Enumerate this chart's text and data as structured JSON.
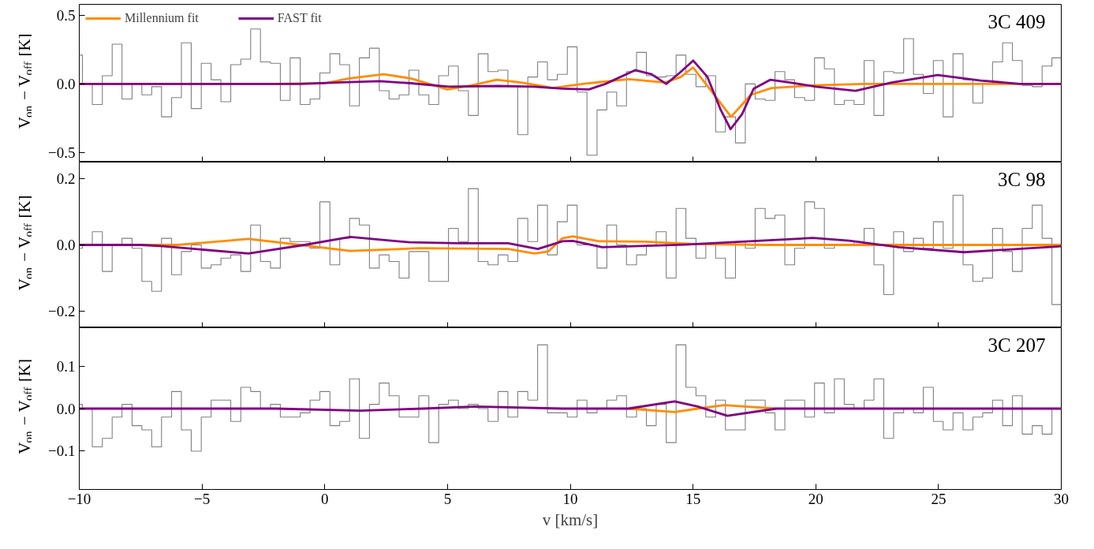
{
  "chart_data": [
    {
      "type": "line",
      "ylabel": "V$_{on}$ − V$_{off}$ [K]",
      "annotations": [
        "3C 409"
      ],
      "legend": "top left",
      "grid": false,
      "tick_labels": "y",
      "xlim": [
        -10,
        30
      ],
      "xticks": [
        -10,
        -5,
        0,
        5,
        10,
        15,
        20,
        25,
        30
      ],
      "ylim": [
        -0.57,
        0.58
      ],
      "yticks": [
        {
          "value": -0.5,
          "label": "−0.5"
        },
        {
          "value": 0,
          "label": "0.0"
        },
        0.5
      ],
      "bins": [
        -10,
        -9.87,
        -9.47,
        -9.06,
        -8.66,
        -8.26,
        -7.85,
        -7.45,
        -7.05,
        -6.65,
        -6.24,
        -5.84,
        -5.44,
        -5.03,
        -4.63,
        -4.23,
        -3.83,
        -3.42,
        -3.02,
        -2.62,
        -2.21,
        -1.81,
        -1.41,
        -1.0,
        -0.6,
        -0.2,
        0.21,
        0.61,
        1.01,
        1.41,
        1.82,
        2.22,
        2.62,
        3.03,
        3.43,
        3.83,
        4.24,
        4.64,
        5.04,
        5.44,
        5.85,
        6.25,
        6.65,
        7.06,
        7.46,
        7.86,
        8.27,
        8.67,
        9.07,
        9.47,
        9.88,
        10.28,
        10.68,
        11.09,
        11.49,
        11.89,
        12.29,
        12.7,
        13.1,
        13.5,
        13.91,
        14.31,
        14.71,
        15.12,
        15.52,
        15.92,
        16.32,
        16.73,
        17.13,
        17.53,
        17.94,
        18.34,
        18.74,
        19.14,
        19.55,
        19.95,
        20.35,
        20.76,
        21.16,
        21.56,
        21.97,
        22.37,
        22.77,
        23.17,
        23.58,
        23.98,
        24.38,
        24.79,
        25.19,
        25.59,
        26.0,
        26.4,
        26.8,
        27.2,
        27.61,
        28.01,
        28.41,
        28.82,
        29.22,
        29.62,
        30
      ],
      "series": [
        {
          "type": "histogram",
          "color": "#808080",
          "values": [
            0.21,
            0.0,
            -0.15,
            0.06,
            0.29,
            -0.11,
            0.0,
            -0.08,
            -0.02,
            -0.24,
            -0.1,
            0.3,
            -0.18,
            0.15,
            0.03,
            -0.13,
            0.14,
            0.18,
            0.4,
            0.16,
            0.15,
            -0.12,
            0.19,
            -0.15,
            -0.11,
            0.08,
            0.22,
            0.14,
            -0.16,
            0.19,
            0.26,
            -0.05,
            -0.11,
            -0.08,
            0.1,
            -0.08,
            -0.15,
            0.06,
            0.13,
            -0.05,
            -0.23,
            0.22,
            0.09,
            0.1,
            -0.02,
            -0.37,
            0.05,
            0.16,
            0.03,
            0.07,
            0.27,
            -0.06,
            -0.52,
            -0.19,
            -0.06,
            -0.16,
            0.09,
            0.23,
            0.06,
            0.05,
            0.06,
            0.21,
            0.07,
            -0.02,
            0.06,
            -0.35,
            -0.24,
            -0.43,
            0.0,
            -0.11,
            -0.12,
            0.09,
            0.03,
            -0.1,
            -0.12,
            0.19,
            0.11,
            -0.15,
            -0.12,
            -0.15,
            0.17,
            -0.23,
            0.09,
            0.08,
            0.33,
            0.07,
            -0.07,
            0.17,
            -0.24,
            0.22,
            0.03,
            -0.14,
            0.0,
            0.16,
            0.3,
            0.17,
            -0.01,
            -0.02,
            0.13,
            0.19
          ]
        },
        {
          "name": "Millennium fit",
          "color": "#ff8c00",
          "x": [
            -10,
            -2,
            0,
            1,
            2.4,
            3.5,
            5,
            6,
            7,
            8,
            9,
            9.29,
            10.5,
            12.4,
            13.86,
            14.5,
            15.0,
            15.74,
            16.55,
            17.35,
            18.2,
            20,
            22,
            25,
            30
          ],
          "values": [
            0,
            0,
            0.005,
            0.04,
            0.07,
            0.04,
            -0.04,
            -0.01,
            0.03,
            0.01,
            -0.02,
            -0.03,
            0.0,
            0.035,
            0.01,
            0.05,
            0.12,
            -0.05,
            -0.24,
            -0.08,
            -0.03,
            -0.01,
            0,
            0,
            0
          ]
        },
        {
          "name": "FAST fit",
          "color": "#800080",
          "x": [
            -10,
            -1,
            0.5,
            2.24,
            3.5,
            5.05,
            7.06,
            8.5,
            9.68,
            10.76,
            11.43,
            12.64,
            13.31,
            13.91,
            14.45,
            15.01,
            15.59,
            16.13,
            16.53,
            17.0,
            17.47,
            18.14,
            18.95,
            20.0,
            21.62,
            23.09,
            24.97,
            26.71,
            28.32,
            30
          ],
          "values": [
            0,
            0,
            0.01,
            0.02,
            0.005,
            -0.02,
            -0.015,
            -0.02,
            -0.035,
            -0.04,
            0.0,
            0.1,
            0.07,
            0.0,
            0.08,
            0.17,
            0.05,
            -0.19,
            -0.33,
            -0.22,
            -0.035,
            0.03,
            0.01,
            -0.02,
            -0.05,
            0.01,
            0.065,
            0.025,
            0.0,
            0.0
          ]
        }
      ]
    },
    {
      "type": "line",
      "ylabel": "V$_{on}$ − V$_{off}$ [K]",
      "annotations": [
        "3C 98"
      ],
      "grid": false,
      "tick_labels": "y",
      "xlim": [
        -10,
        30
      ],
      "xticks": [
        -10,
        -5,
        0,
        5,
        10,
        15,
        20,
        25,
        30
      ],
      "ylim": [
        -0.25,
        0.25
      ],
      "yticks": [
        {
          "value": -0.2,
          "label": "−0.2"
        },
        {
          "value": 0,
          "label": "0.0"
        },
        0.2
      ],
      "bins": [
        -10,
        -9.87,
        -9.47,
        -9.06,
        -8.66,
        -8.26,
        -7.85,
        -7.45,
        -7.05,
        -6.65,
        -6.24,
        -5.84,
        -5.44,
        -5.03,
        -4.63,
        -4.23,
        -3.83,
        -3.42,
        -3.02,
        -2.62,
        -2.21,
        -1.81,
        -1.41,
        -1.0,
        -0.6,
        -0.2,
        0.21,
        0.61,
        1.01,
        1.41,
        1.82,
        2.22,
        2.62,
        3.03,
        3.43,
        3.83,
        4.24,
        4.64,
        5.04,
        5.44,
        5.85,
        6.25,
        6.65,
        7.06,
        7.46,
        7.86,
        8.27,
        8.67,
        9.07,
        9.47,
        9.88,
        10.28,
        10.68,
        11.09,
        11.49,
        11.89,
        12.29,
        12.7,
        13.1,
        13.5,
        13.91,
        14.31,
        14.71,
        15.12,
        15.52,
        15.92,
        16.32,
        16.73,
        17.13,
        17.53,
        17.94,
        18.34,
        18.74,
        19.14,
        19.55,
        19.95,
        20.35,
        20.76,
        21.16,
        21.56,
        21.97,
        22.37,
        22.77,
        23.17,
        23.58,
        23.98,
        24.38,
        24.79,
        25.19,
        25.59,
        26.0,
        26.4,
        26.8,
        27.2,
        27.61,
        28.01,
        28.41,
        28.82,
        29.22,
        29.62,
        30
      ],
      "series": [
        {
          "type": "histogram",
          "color": "#808080",
          "values": [
            -0.01,
            0.0,
            0.04,
            -0.08,
            0.0,
            0.02,
            -0.01,
            -0.11,
            -0.14,
            0.02,
            -0.09,
            -0.02,
            0.0,
            -0.07,
            -0.06,
            -0.04,
            -0.03,
            -0.08,
            0.06,
            -0.05,
            -0.07,
            0.02,
            0.01,
            0.01,
            -0.01,
            0.13,
            -0.06,
            0.02,
            0.08,
            0.06,
            -0.07,
            -0.03,
            -0.05,
            -0.1,
            -0.02,
            -0.02,
            -0.11,
            -0.11,
            0.05,
            0.01,
            0.17,
            -0.05,
            -0.06,
            -0.03,
            -0.05,
            0.08,
            0.01,
            0.12,
            -0.03,
            0.07,
            0.12,
            0.0,
            0.0,
            -0.07,
            0.06,
            0.0,
            -0.06,
            -0.03,
            0.0,
            0.04,
            -0.1,
            0.11,
            0.02,
            -0.04,
            0.0,
            -0.04,
            -0.1,
            0.01,
            -0.01,
            0.11,
            0.08,
            0.09,
            -0.06,
            -0.01,
            0.13,
            0.11,
            -0.01,
            0.0,
            0.0,
            0.01,
            0.05,
            -0.06,
            -0.15,
            0.04,
            -0.02,
            0.02,
            -0.01,
            0.07,
            -0.01,
            0.15,
            -0.06,
            -0.11,
            -0.1,
            0.05,
            -0.02,
            -0.08,
            0.05,
            0.12,
            0.02,
            -0.18
          ]
        },
        {
          "color": "#ff8c00",
          "x": [
            -10,
            -6,
            -3.11,
            -1,
            1.04,
            3.85,
            7.47,
            8.54,
            9.1,
            9.68,
            10.1,
            11.17,
            13.05,
            14.92,
            18,
            30
          ],
          "values": [
            0,
            0,
            0.018,
            0.0,
            -0.018,
            -0.01,
            -0.012,
            -0.026,
            -0.02,
            0.02,
            0.026,
            0.011,
            0.01,
            0.003,
            0.0,
            0.0
          ]
        },
        {
          "color": "#800080",
          "x": [
            -10,
            -7.5,
            -6.6,
            -3.11,
            -0.83,
            1.04,
            3.45,
            5.46,
            7.47,
            8.68,
            9.68,
            10.1,
            11.3,
            14.66,
            19.88,
            21.36,
            23.37,
            26.05,
            29.8,
            30
          ],
          "values": [
            0,
            0,
            -0.004,
            -0.026,
            0.0,
            0.024,
            0.008,
            0.005,
            0.005,
            -0.012,
            0.011,
            0.012,
            -0.007,
            0.001,
            0.021,
            0.013,
            -0.007,
            -0.022,
            -0.005,
            -0.004
          ]
        }
      ]
    },
    {
      "type": "line",
      "xlabel": "v [km/s]",
      "ylabel": "V$_{on}$ − V$_{off}$ [K]",
      "annotations": [
        "3C 207"
      ],
      "grid": false,
      "xlim": [
        -10,
        30
      ],
      "xticks": [
        {
          "value": -10,
          "label": "−10"
        },
        {
          "value": -5,
          "label": "−5"
        },
        0,
        5,
        10,
        15,
        20,
        25,
        30
      ],
      "ylim": [
        -0.19,
        0.19
      ],
      "yticks": [
        {
          "value": -0.1,
          "label": "−0.1"
        },
        {
          "value": 0,
          "label": "0.0"
        },
        0.1
      ],
      "bins": [
        -10,
        -9.87,
        -9.47,
        -9.06,
        -8.66,
        -8.26,
        -7.85,
        -7.45,
        -7.05,
        -6.65,
        -6.24,
        -5.84,
        -5.44,
        -5.03,
        -4.63,
        -4.23,
        -3.83,
        -3.42,
        -3.02,
        -2.62,
        -2.21,
        -1.81,
        -1.41,
        -1.0,
        -0.6,
        -0.2,
        0.21,
        0.61,
        1.01,
        1.41,
        1.82,
        2.22,
        2.62,
        3.03,
        3.43,
        3.83,
        4.24,
        4.64,
        5.04,
        5.44,
        5.85,
        6.25,
        6.65,
        7.06,
        7.46,
        7.86,
        8.27,
        8.67,
        9.07,
        9.47,
        9.88,
        10.28,
        10.68,
        11.09,
        11.49,
        11.89,
        12.29,
        12.7,
        13.1,
        13.5,
        13.91,
        14.31,
        14.71,
        15.12,
        15.52,
        15.92,
        16.32,
        16.73,
        17.13,
        17.53,
        17.94,
        18.34,
        18.74,
        19.14,
        19.55,
        19.95,
        20.35,
        20.76,
        21.16,
        21.56,
        21.97,
        22.37,
        22.77,
        23.17,
        23.58,
        23.98,
        24.38,
        24.79,
        25.19,
        25.59,
        26.0,
        26.4,
        26.8,
        27.2,
        27.61,
        28.01,
        28.41,
        28.82,
        29.22,
        29.62,
        30
      ],
      "series": [
        {
          "type": "histogram",
          "color": "#808080",
          "values": [
            0.01,
            0.0,
            -0.09,
            -0.07,
            -0.02,
            0.01,
            -0.04,
            -0.05,
            -0.09,
            -0.02,
            0.04,
            -0.05,
            -0.1,
            -0.02,
            0.02,
            0.02,
            -0.03,
            0.05,
            0.04,
            0.0,
            0.01,
            -0.02,
            -0.02,
            -0.01,
            0.02,
            0.04,
            -0.04,
            -0.03,
            0.07,
            -0.07,
            0.01,
            0.06,
            0.03,
            -0.02,
            -0.02,
            0.03,
            -0.08,
            0.01,
            0.02,
            0.0,
            0.01,
            0.0,
            -0.03,
            0.04,
            -0.02,
            0.04,
            0.02,
            0.15,
            -0.01,
            -0.01,
            -0.02,
            0.02,
            -0.01,
            0.0,
            0.02,
            0.03,
            -0.02,
            0.0,
            -0.04,
            0.01,
            -0.08,
            0.15,
            0.05,
            0.03,
            -0.02,
            0.02,
            -0.05,
            -0.05,
            0.02,
            0.02,
            -0.01,
            -0.05,
            0.02,
            0.02,
            -0.02,
            0.06,
            -0.01,
            0.07,
            0.01,
            0.0,
            0.02,
            0.07,
            -0.07,
            -0.01,
            0.0,
            -0.01,
            0.05,
            -0.03,
            -0.05,
            -0.01,
            -0.05,
            -0.02,
            -0.01,
            0.02,
            -0.04,
            0.03,
            -0.06,
            -0.04,
            -0.06,
            0.0
          ]
        },
        {
          "color": "#ff8c00",
          "x": [
            12.37,
            14.25,
            15.2,
            16.26,
            18.4
          ],
          "values": [
            0.0,
            -0.008,
            0.0,
            0.008,
            0.0
          ]
        },
        {
          "color": "#800080",
          "x": [
            -10,
            -2,
            1.44,
            4,
            6.13,
            9.68,
            12.37,
            14.25,
            15.19,
            16.4,
            18.4,
            30
          ],
          "values": [
            0,
            0,
            -0.005,
            0.0,
            0.005,
            0.0,
            0.0,
            0.017,
            0.005,
            -0.017,
            0.0,
            0.0
          ]
        }
      ]
    }
  ]
}
